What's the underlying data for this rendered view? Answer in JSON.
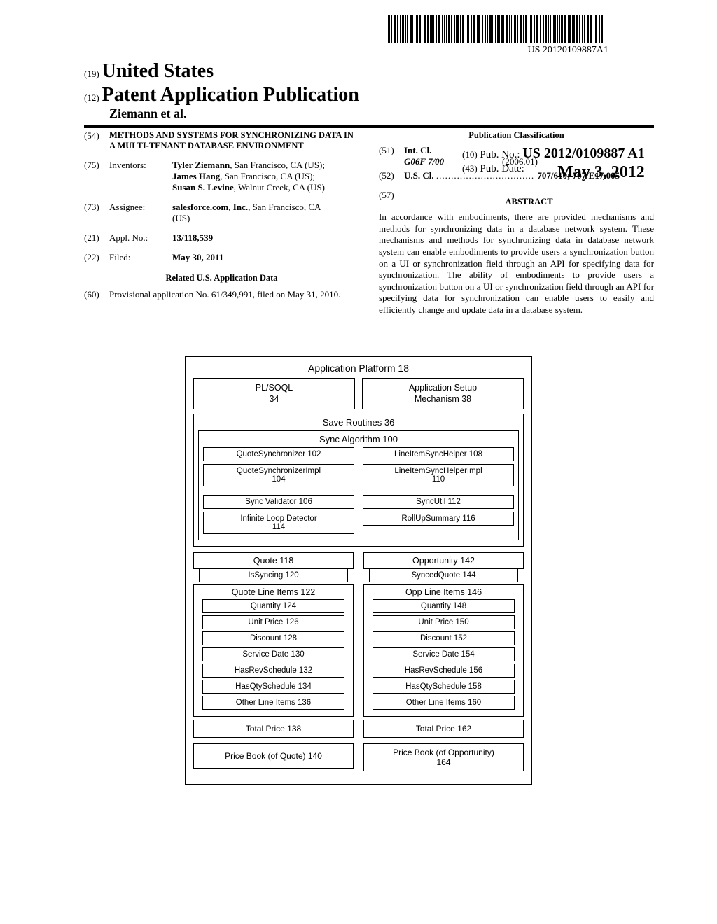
{
  "barcode_number": "US 20120109887A1",
  "header": {
    "num19": "(19)",
    "country": "United States",
    "num12": "(12)",
    "pub_title": "Patent Application Publication",
    "authors": "Ziemann et al.",
    "num10": "(10)",
    "pub_no_label": "Pub. No.:",
    "pub_no": "US 2012/0109887 A1",
    "num43": "(43)",
    "pub_date_label": "Pub. Date:",
    "pub_date": "May 3, 2012"
  },
  "left": {
    "num54": "(54)",
    "title": "METHODS AND SYSTEMS FOR SYNCHRONIZING DATA IN A MULTI-TENANT DATABASE ENVIRONMENT",
    "num75": "(75)",
    "inventors_label": "Inventors:",
    "inventors_text_1": "Tyler Ziemann",
    "inventors_text_1b": ", San Francisco, CA (US); ",
    "inventors_text_2": "James Hang",
    "inventors_text_2b": ", San Francisco, CA (US); ",
    "inventors_text_3": "Susan S. Levine",
    "inventors_text_3b": ", Walnut Creek, CA (US)",
    "num73": "(73)",
    "assignee_label": "Assignee:",
    "assignee_name": "salesforce.com, Inc.",
    "assignee_loc": ", San Francisco, CA (US)",
    "num21": "(21)",
    "applno_label": "Appl. No.:",
    "applno": "13/118,539",
    "num22": "(22)",
    "filed_label": "Filed:",
    "filed": "May 30, 2011",
    "related_hdr": "Related U.S. Application Data",
    "num60": "(60)",
    "provisional": "Provisional application No. 61/349,991, filed on May 31, 2010."
  },
  "right": {
    "pubclass_hdr": "Publication Classification",
    "num51": "(51)",
    "intcl_label": "Int. Cl.",
    "intcl_code": "G06F 7/00",
    "intcl_date": "(2006.01)",
    "num52": "(52)",
    "uscl_label": "U.S. Cl.",
    "uscl_codes": "707/610; 707/E17.005",
    "num57": "(57)",
    "abstract_hdr": "ABSTRACT",
    "abstract": "In accordance with embodiments, there are provided mechanisms and methods for synchronizing data in a database network system. These mechanisms and methods for synchronizing data in database network system can enable embodiments to provide users a synchronization button on a UI or synchronization field through an API for specifying data for synchronization. The ability of embodiments to provide users a synchronization button on a UI or synchronization field through an API for specifying data for synchronization can enable users to easily and efficiently change and update data in a database system."
  },
  "diagram": {
    "title": "Application Platform 18",
    "plsoql": "PL/SOQL\n34",
    "appsetup": "Application Setup\nMechanism 38",
    "save_routines": "Save Routines 36",
    "sync_algo": "Sync Algorithm 100",
    "qsync": "QuoteSynchronizer 102",
    "qsyncimpl": "QuoteSynchronizerImpl\n104",
    "syncval": "Sync Validator 106",
    "infloop": "Infinite Loop Detector\n114",
    "lisync": "LineItemSyncHelper 108",
    "lisyncimpl": "LineItemSyncHelperImpl\n110",
    "syncutil": "SyncUtil 112",
    "rollup": "RollUpSummary 116",
    "quote_hdr": "Quote 118",
    "issyncing": "IsSyncing 120",
    "qli_hdr": "Quote Line Items 122",
    "qli": [
      "Quantity 124",
      "Unit Price 126",
      "Discount 128",
      "Service Date 130",
      "HasRevSchedule 132",
      "HasQtySchedule 134",
      "Other Line Items 136"
    ],
    "total_q": "Total Price 138",
    "pricebook_q": "Price Book (of Quote) 140",
    "opp_hdr": "Opportunity 142",
    "syncedquote": "SyncedQuote 144",
    "oli_hdr": "Opp Line Items 146",
    "oli": [
      "Quantity 148",
      "Unit Price 150",
      "Discount 152",
      "Service Date 154",
      "HasRevSchedule 156",
      "HasQtySchedule 158",
      "Other Line Items 160"
    ],
    "total_o": "Total Price 162",
    "pricebook_o": "Price Book (of Opportunity)\n164"
  }
}
